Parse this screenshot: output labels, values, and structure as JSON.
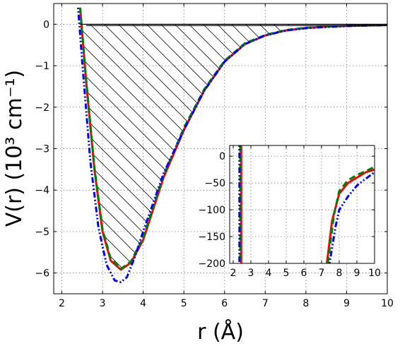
{
  "chart_data": [
    {
      "type": "line",
      "xlabel": "r (Å)",
      "ylabel": "V(r) (10³ cm⁻¹)",
      "xlim": [
        1.8,
        10
      ],
      "ylim": [
        -6.5,
        0.5
      ],
      "xticks": [
        2,
        3,
        4,
        5,
        6,
        7,
        8,
        9,
        10
      ],
      "yticks": [
        0,
        -1,
        -2,
        -3,
        -4,
        -5,
        -6
      ],
      "xtick_labels": [
        "2",
        "3",
        "4",
        "5",
        "6",
        "7",
        "8",
        "9",
        "10"
      ],
      "ytick_labels": [
        "0",
        "−1",
        "−2",
        "−3",
        "−4",
        "−5",
        "−6"
      ],
      "grid": true,
      "legend": "none",
      "hatched_region": "between V=0 and the potential curve from r≈2.5 to r≈7.5",
      "series": [
        {
          "style": "solid",
          "color": "#ff0000",
          "x": [
            2.45,
            2.6,
            2.8,
            3.0,
            3.2,
            3.45,
            3.7,
            4.0,
            4.5,
            5.0,
            5.5,
            6.0,
            6.5,
            7.0,
            7.5,
            8.0,
            8.5,
            9.0,
            9.5,
            10.0
          ],
          "y": [
            0.4,
            -1.4,
            -3.5,
            -5.0,
            -5.7,
            -5.92,
            -5.75,
            -5.2,
            -3.7,
            -2.55,
            -1.6,
            -0.9,
            -0.48,
            -0.27,
            -0.15,
            -0.09,
            -0.06,
            -0.04,
            -0.03,
            -0.02
          ]
        },
        {
          "style": "dashed",
          "color": "#008000",
          "x": [
            2.45,
            2.6,
            2.8,
            3.0,
            3.2,
            3.45,
            3.7,
            4.0,
            4.5,
            5.0,
            5.5,
            6.0,
            6.5,
            7.0,
            7.5,
            8.0,
            8.5,
            9.0,
            9.5,
            10.0
          ],
          "y": [
            0.4,
            -1.35,
            -3.45,
            -4.95,
            -5.65,
            -5.9,
            -5.72,
            -5.15,
            -3.65,
            -2.5,
            -1.57,
            -0.88,
            -0.46,
            -0.26,
            -0.14,
            -0.085,
            -0.055,
            -0.038,
            -0.027,
            -0.02
          ]
        },
        {
          "style": "dashdot",
          "color": "#0000ff",
          "x": [
            2.4,
            2.5,
            2.7,
            2.9,
            3.1,
            3.3,
            3.45,
            3.6,
            3.8,
            4.0,
            4.5,
            5.0,
            5.5,
            6.0,
            6.5,
            7.0,
            7.5,
            8.0,
            8.5,
            9.0,
            9.5,
            10.0
          ],
          "y": [
            0.4,
            -0.9,
            -3.3,
            -4.9,
            -5.8,
            -6.18,
            -6.22,
            -6.1,
            -5.6,
            -5.0,
            -3.6,
            -2.55,
            -1.6,
            -0.9,
            -0.48,
            -0.27,
            -0.15,
            -0.095,
            -0.065,
            -0.045,
            -0.032,
            -0.022
          ]
        },
        {
          "style": "solid",
          "color": "#000000",
          "x": [
            2.45,
            10.0
          ],
          "y": [
            0,
            0
          ]
        },
        {
          "style": "solid",
          "color": "#000000",
          "x": [
            2.6,
            10.0
          ],
          "y": [
            -0.03,
            -0.03
          ]
        }
      ]
    },
    {
      "type": "line",
      "xlim": [
        1.8,
        10
      ],
      "ylim": [
        -200,
        20
      ],
      "xticks": [
        2,
        3,
        4,
        5,
        6,
        7,
        8,
        9,
        10
      ],
      "yticks": [
        0,
        -50,
        -100,
        -150,
        -200
      ],
      "xtick_labels": [
        "2",
        "3",
        "4",
        "5",
        "6",
        "7",
        "8",
        "9",
        "10"
      ],
      "ytick_labels": [
        "0",
        "−50",
        "−100",
        "−150",
        "−200"
      ],
      "grid": true,
      "series": [
        {
          "style": "solid",
          "color": "#ff0000",
          "x": [
            2.45,
            2.45,
            null,
            7.3,
            7.6,
            8.0,
            8.5,
            9.0,
            9.5,
            10.0
          ],
          "y": [
            20,
            -200,
            null,
            -200,
            -120,
            -70,
            -50,
            -40,
            -30,
            -25
          ]
        },
        {
          "style": "dashed",
          "color": "#008000",
          "x": [
            2.4,
            2.4,
            null,
            7.35,
            7.7,
            8.0,
            8.5,
            9.0,
            9.5,
            10.0
          ],
          "y": [
            20,
            -200,
            null,
            -200,
            -110,
            -65,
            -45,
            -35,
            -28,
            -20
          ]
        },
        {
          "style": "dashdot",
          "color": "#0000ff",
          "x": [
            2.35,
            2.35,
            null,
            7.45,
            7.8,
            8.0,
            8.5,
            9.0,
            9.5,
            10.0
          ],
          "y": [
            20,
            -200,
            null,
            -200,
            -130,
            -100,
            -75,
            -55,
            -42,
            -30
          ]
        }
      ]
    }
  ]
}
